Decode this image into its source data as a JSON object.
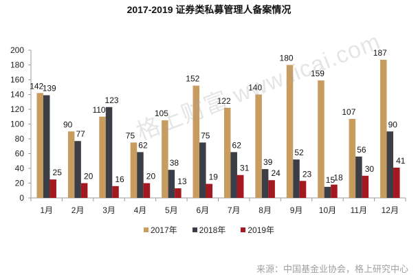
{
  "chart_data": {
    "type": "bar",
    "title": "2017-2019 证券类私募管理人备案情况",
    "xlabel": "",
    "ylabel": "",
    "ylim": [
      0,
      200
    ],
    "yticks": [
      0,
      20,
      40,
      60,
      80,
      100,
      120,
      140,
      160,
      180,
      200
    ],
    "grid": false,
    "legend_position": "bottom",
    "categories": [
      "1月",
      "2月",
      "3月",
      "4月",
      "5月",
      "6月",
      "7月",
      "8月",
      "9月",
      "10月",
      "11月",
      "12月"
    ],
    "series": [
      {
        "name": "2017年",
        "color": "#C89B5F",
        "values": [
          142,
          90,
          110,
          75,
          105,
          152,
          122,
          140,
          180,
          159,
          107,
          187
        ]
      },
      {
        "name": "2018年",
        "color": "#3B3E46",
        "values": [
          139,
          77,
          123,
          62,
          38,
          75,
          62,
          39,
          52,
          15,
          56,
          90
        ]
      },
      {
        "name": "2019年",
        "color": "#A3191F",
        "values": [
          25,
          20,
          16,
          20,
          13,
          19,
          31,
          24,
          23,
          18,
          30,
          41
        ]
      }
    ]
  },
  "watermark": "格上财富  www.licai.com",
  "source": "来源：中国基金业协会，格上研究中心"
}
